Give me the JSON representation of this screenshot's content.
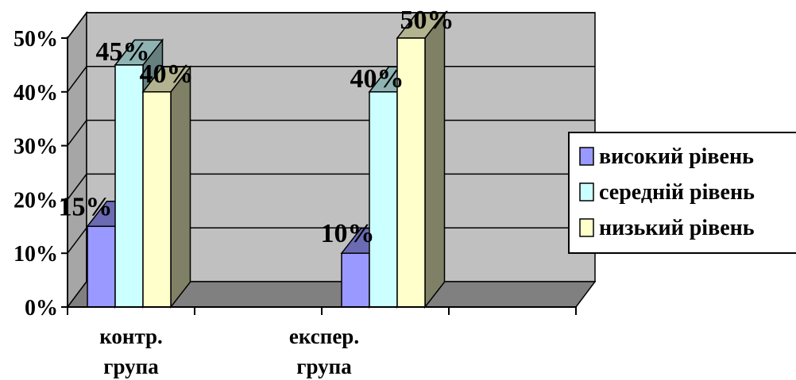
{
  "chart_data": {
    "type": "bar",
    "categories": [
      "контр. група",
      "експер. група"
    ],
    "series": [
      {
        "name": "високий рівень",
        "values": [
          15,
          10
        ],
        "color": "#9999ff"
      },
      {
        "name": "середній рівень",
        "values": [
          45,
          40
        ],
        "color": "#ccffff"
      },
      {
        "name": "низький рівень",
        "values": [
          40,
          50
        ],
        "color": "#ffffcc"
      }
    ],
    "y_ticks": [
      "0%",
      "10%",
      "20%",
      "30%",
      "40%",
      "50%"
    ],
    "ylim": [
      0,
      50
    ],
    "value_suffix": "%",
    "grid": true,
    "legend_position": "right",
    "three_d": true,
    "colors": {
      "wall": "#c0c0c0",
      "floor": "#808080",
      "side_wall": "#a6a6a6"
    }
  }
}
